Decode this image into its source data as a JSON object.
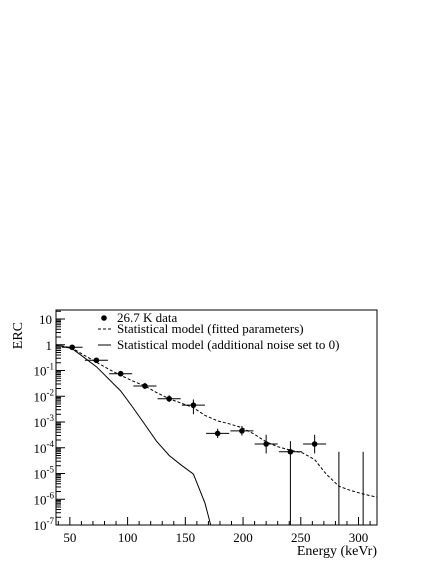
{
  "chart_data": {
    "type": "scatter",
    "title": "",
    "xlabel": "Energy (keVr)",
    "ylabel": "ERC",
    "xlim": [
      38,
      316
    ],
    "ylim_log10": [
      -7,
      1.35
    ],
    "yscale": "log",
    "grid": false,
    "legend_position": "top",
    "x_ticks": [
      {
        "value": 50,
        "label": "50"
      },
      {
        "value": 100,
        "label": "100"
      },
      {
        "value": 150,
        "label": "150"
      },
      {
        "value": 200,
        "label": "200"
      },
      {
        "value": 250,
        "label": "250"
      },
      {
        "value": 300,
        "label": "300"
      }
    ],
    "y_ticks": [
      {
        "exp": 1,
        "label_base": "10",
        "label_sup": ""
      },
      {
        "exp": 0,
        "label_base": "1",
        "label_sup": ""
      },
      {
        "exp": -1,
        "label_base": "10",
        "label_sup": "-1"
      },
      {
        "exp": -2,
        "label_base": "10",
        "label_sup": "-2"
      },
      {
        "exp": -3,
        "label_base": "10",
        "label_sup": "-3"
      },
      {
        "exp": -4,
        "label_base": "10",
        "label_sup": "-4"
      },
      {
        "exp": -5,
        "label_base": "10",
        "label_sup": "-5"
      },
      {
        "exp": -6,
        "label_base": "10",
        "label_sup": "-6"
      },
      {
        "exp": -7,
        "label_base": "10",
        "label_sup": "-7"
      }
    ],
    "legend": [
      {
        "label": "26.7 K data",
        "style": "marker"
      },
      {
        "label": "Statistical model (fitted parameters)",
        "style": "dashed"
      },
      {
        "label": "Statistical model (additional noise set to 0)",
        "style": "solid"
      }
    ],
    "series": [
      {
        "name": "26.7 K data",
        "kind": "points",
        "points": [
          {
            "x": 52,
            "y": 0.8,
            "xerr": 9,
            "ylo": 0.62,
            "yhi": 1.0
          },
          {
            "x": 73,
            "y": 0.25,
            "xerr": 10,
            "ylo": 0.2,
            "yhi": 0.3
          },
          {
            "x": 94,
            "y": 0.075,
            "xerr": 10,
            "ylo": 0.062,
            "yhi": 0.092
          },
          {
            "x": 115,
            "y": 0.025,
            "xerr": 10,
            "ylo": 0.019,
            "yhi": 0.033
          },
          {
            "x": 136,
            "y": 0.008,
            "xerr": 10,
            "ylo": 0.006,
            "yhi": 0.011
          },
          {
            "x": 157,
            "y": 0.0045,
            "xerr": 10,
            "ylo": 0.002,
            "yhi": 0.0075
          },
          {
            "x": 178,
            "y": 0.00036,
            "xerr": 10,
            "ylo": 0.00024,
            "yhi": 0.00055
          },
          {
            "x": 199,
            "y": 0.00045,
            "xerr": 10,
            "ylo": 0.0003,
            "yhi": 0.0007
          },
          {
            "x": 220,
            "y": 0.00014,
            "xerr": 10,
            "ylo": 6e-05,
            "yhi": 0.00032
          },
          {
            "x": 241,
            "y": 7e-05,
            "xerr": 10,
            "ylo": 1e-07,
            "yhi": 0.00018
          },
          {
            "x": 262,
            "y": 0.00014,
            "xerr": 10,
            "ylo": 6e-05,
            "yhi": 0.00032
          },
          {
            "x": 283,
            "y": null,
            "xerr": 0,
            "ylo": 1e-07,
            "yhi": 7e-05
          },
          {
            "x": 304,
            "y": null,
            "xerr": 0,
            "ylo": 1e-07,
            "yhi": 7e-05
          }
        ]
      },
      {
        "name": "Statistical model (fitted parameters)",
        "kind": "dashed",
        "x": [
          38,
          52,
          62,
          73,
          84,
          94,
          104,
          115,
          125,
          136,
          146,
          157,
          167,
          178,
          188,
          199,
          209,
          220,
          230,
          241,
          251,
          262,
          272,
          283,
          293,
          304,
          316
        ],
        "y": [
          1.0,
          0.75,
          0.4,
          0.21,
          0.11,
          0.065,
          0.04,
          0.025,
          0.014,
          0.008,
          0.0055,
          0.0036,
          0.0018,
          0.0011,
          0.00085,
          0.0006,
          0.00035,
          0.00017,
          0.00011,
          8e-05,
          6.5e-05,
          3.5e-05,
          9.5e-06,
          3.2e-06,
          2.2e-06,
          1.6e-06,
          1.2e-06
        ]
      },
      {
        "name": "Statistical model (additional noise set to 0)",
        "kind": "solid",
        "x": [
          38,
          52,
          62,
          73,
          84,
          94,
          104,
          115,
          125,
          136,
          146,
          157,
          167,
          172
        ],
        "y": [
          1.0,
          0.7,
          0.33,
          0.14,
          0.045,
          0.016,
          0.004,
          0.0008,
          0.00018,
          5e-05,
          2.2e-05,
          9.5e-06,
          7e-07,
          1e-07
        ]
      }
    ]
  }
}
